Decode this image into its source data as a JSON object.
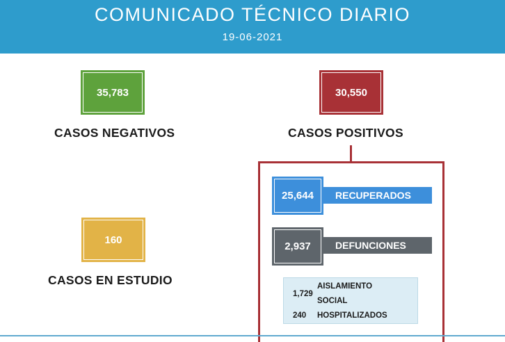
{
  "header": {
    "title": "COMUNICADO TÉCNICO DIARIO",
    "date": "19-06-2021"
  },
  "cards": {
    "negativos": {
      "value": "35,783",
      "label": "CASOS NEGATIVOS",
      "color": "#5ea23c"
    },
    "positivos": {
      "value": "30,550",
      "label": "CASOS POSITIVOS",
      "color": "#a83136"
    },
    "estudio": {
      "value": "160",
      "label": "CASOS EN ESTUDIO",
      "color": "#e2b347"
    }
  },
  "positivos_breakdown": {
    "recuperados": {
      "value": "25,644",
      "label": "RECUPERADOS",
      "color": "#3d8fdb"
    },
    "defunciones": {
      "value": "2,937",
      "label": "DEFUNCIONES",
      "color": "#5e656b"
    },
    "detail": {
      "aislamiento_value": "1,729",
      "aislamiento_label_line1": "AISLAMIENTO",
      "aislamiento_label_line2": "SOCIAL",
      "hospitalizados_value": "240",
      "hospitalizados_label": "HOSPITALIZADOS"
    }
  },
  "colors": {
    "header_bg": "#2e9ccc",
    "frame": "#a83136",
    "detail_bg": "#dcedf5"
  }
}
